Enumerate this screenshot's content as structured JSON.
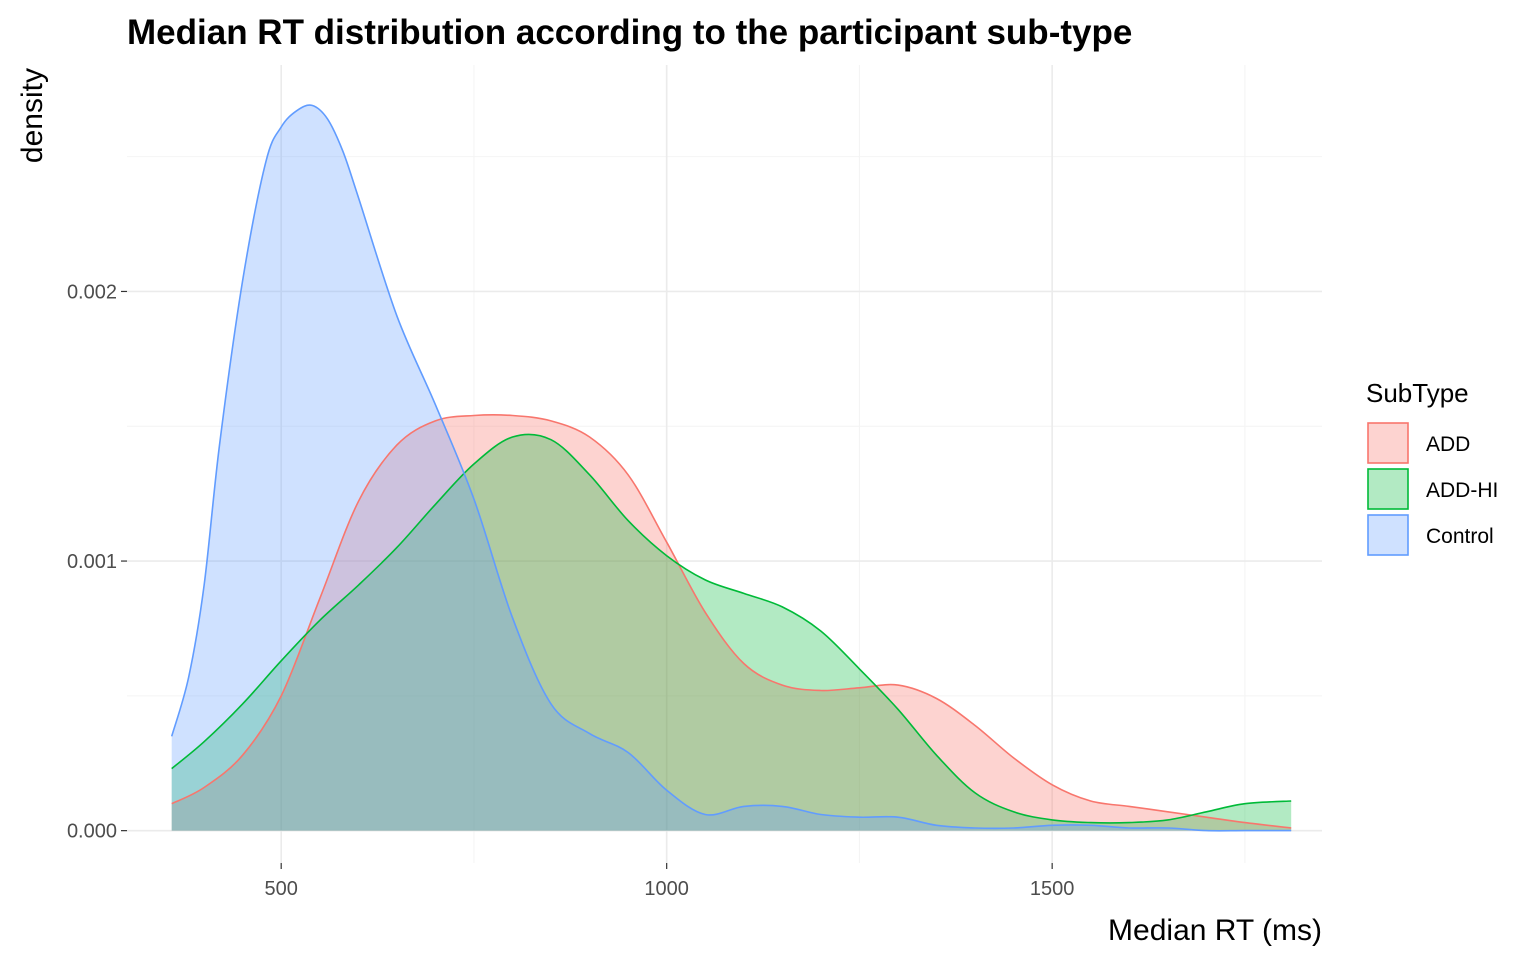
{
  "chart_data": {
    "type": "area",
    "title": "Median RT distribution according to the participant sub-type",
    "xlabel": "Median RT (ms)",
    "ylabel": "density",
    "xlim": [
      300,
      1850
    ],
    "ylim": [
      -0.00012,
      0.00284
    ],
    "x_major_ticks": [
      500,
      1000,
      1500
    ],
    "x_minor_ticks": [
      750,
      1250,
      1750
    ],
    "y_major_ticks": [
      0.0,
      0.001,
      0.002
    ],
    "y_minor_ticks": [
      0.0005,
      0.0015,
      0.0025
    ],
    "x_tick_labels": [
      "500",
      "1000",
      "1500"
    ],
    "y_tick_labels": [
      "0.000",
      "0.001",
      "0.002"
    ],
    "grid": true,
    "legend": {
      "title": "SubType",
      "position": "right"
    },
    "series": [
      {
        "name": "ADD",
        "line_color": "#F8766D",
        "fill_color": "#F8766D",
        "fill_opacity": 0.32,
        "x": [
          358,
          400,
          450,
          500,
          550,
          600,
          650,
          700,
          750,
          800,
          850,
          900,
          950,
          1000,
          1050,
          1100,
          1150,
          1200,
          1250,
          1300,
          1350,
          1400,
          1450,
          1500,
          1550,
          1600,
          1650,
          1700,
          1750,
          1810
        ],
        "y": [
          0.0001,
          0.00016,
          0.00028,
          0.0005,
          0.00086,
          0.00122,
          0.00143,
          0.00152,
          0.00154,
          0.00154,
          0.00152,
          0.00146,
          0.00132,
          0.00107,
          0.00081,
          0.00062,
          0.00054,
          0.00052,
          0.00053,
          0.00054,
          0.00049,
          0.00039,
          0.00027,
          0.00017,
          0.00011,
          9e-05,
          7e-05,
          5e-05,
          3e-05,
          1e-05
        ]
      },
      {
        "name": "ADD-HI",
        "line_color": "#00BA38",
        "fill_color": "#00BA38",
        "fill_opacity": 0.3,
        "x": [
          358,
          400,
          450,
          500,
          550,
          600,
          650,
          700,
          750,
          800,
          850,
          900,
          950,
          1000,
          1050,
          1100,
          1150,
          1200,
          1250,
          1300,
          1350,
          1400,
          1450,
          1500,
          1550,
          1600,
          1650,
          1700,
          1750,
          1810
        ],
        "y": [
          0.00023,
          0.00033,
          0.00047,
          0.00063,
          0.00078,
          0.00091,
          0.00105,
          0.00121,
          0.00136,
          0.00146,
          0.00145,
          0.00132,
          0.00115,
          0.00102,
          0.00093,
          0.00088,
          0.00083,
          0.00074,
          0.0006,
          0.00045,
          0.00028,
          0.00014,
          7e-05,
          4e-05,
          3e-05,
          3e-05,
          4e-05,
          7e-05,
          0.0001,
          0.00011
        ]
      },
      {
        "name": "Control",
        "line_color": "#619CFF",
        "fill_color": "#619CFF",
        "fill_opacity": 0.3,
        "x": [
          358,
          380,
          400,
          420,
          450,
          480,
          500,
          520,
          540,
          560,
          580,
          600,
          650,
          700,
          750,
          800,
          850,
          900,
          950,
          1000,
          1050,
          1100,
          1150,
          1200,
          1250,
          1300,
          1350,
          1400,
          1450,
          1500,
          1550,
          1600,
          1650,
          1700,
          1750,
          1810
        ],
        "y": [
          0.00035,
          0.00057,
          0.00091,
          0.00143,
          0.00204,
          0.00248,
          0.00261,
          0.00267,
          0.00269,
          0.00264,
          0.00252,
          0.00235,
          0.00191,
          0.00158,
          0.00123,
          0.00079,
          0.00047,
          0.00036,
          0.00029,
          0.00015,
          6e-05,
          9e-05,
          9e-05,
          6e-05,
          5e-05,
          5e-05,
          2e-05,
          1e-05,
          1e-05,
          2e-05,
          2e-05,
          1e-05,
          1e-05,
          0.0,
          0.0,
          0.0
        ]
      }
    ]
  }
}
